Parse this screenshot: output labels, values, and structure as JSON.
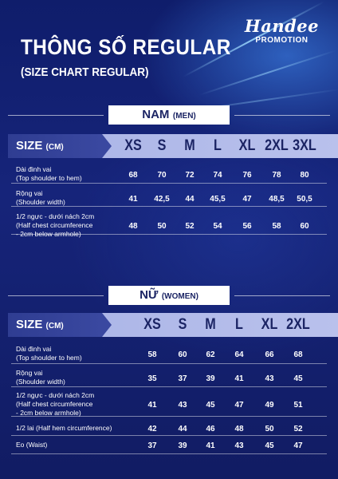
{
  "header": {
    "title": "THÔNG SỐ REGULAR",
    "subtitle": "(SIZE CHART REGULAR)"
  },
  "logo": {
    "mark": "Handee",
    "sub": "PROMOTION"
  },
  "men": {
    "gender_main": "NAM",
    "gender_sub": "(MEN)",
    "size_label": "SIZE",
    "size_unit": "(CM)",
    "sizes": [
      "XS",
      "S",
      "M",
      "L",
      "XL",
      "2XL",
      "3XL"
    ],
    "rows": [
      {
        "label_vi": "Dài đinh vai",
        "label_en": "(Top shoulder to hem)",
        "values": [
          "68",
          "70",
          "72",
          "74",
          "76",
          "78",
          "80"
        ]
      },
      {
        "label_vi": "Rộng vai",
        "label_en": "(Shoulder width)",
        "values": [
          "41",
          "42,5",
          "44",
          "45,5",
          "47",
          "48,5",
          "50,5"
        ]
      },
      {
        "label_vi": "1/2 ngực - dưới nách 2cm",
        "label_en": "(Half chest circumference",
        "label_en2": "- 2cm below armhole)",
        "values": [
          "48",
          "50",
          "52",
          "54",
          "56",
          "58",
          "60"
        ]
      }
    ]
  },
  "women": {
    "gender_main": "NỮ",
    "gender_sub": "(WOMEN)",
    "size_label": "SIZE",
    "size_unit": "(CM)",
    "sizes": [
      "XS",
      "S",
      "M",
      "L",
      "XL",
      "2XL"
    ],
    "rows": [
      {
        "label_vi": "Dài đinh vai",
        "label_en": "(Top shoulder to hem)",
        "values": [
          "58",
          "60",
          "62",
          "64",
          "66",
          "68"
        ]
      },
      {
        "label_vi": "Rộng vai",
        "label_en": "(Shoulder width)",
        "values": [
          "35",
          "37",
          "39",
          "41",
          "43",
          "45"
        ]
      },
      {
        "label_vi": "1/2 ngực - dưới nách 2cm",
        "label_en": "(Half chest circumference",
        "label_en2": "- 2cm below armhole)",
        "values": [
          "41",
          "43",
          "45",
          "47",
          "49",
          "51"
        ]
      },
      {
        "label_vi": "1/2 lai (Half hem circumference)",
        "values": [
          "42",
          "44",
          "46",
          "48",
          "50",
          "52"
        ]
      },
      {
        "label_vi": "Eo (Waist)",
        "values": [
          "37",
          "39",
          "41",
          "43",
          "45",
          "47"
        ]
      }
    ]
  }
}
